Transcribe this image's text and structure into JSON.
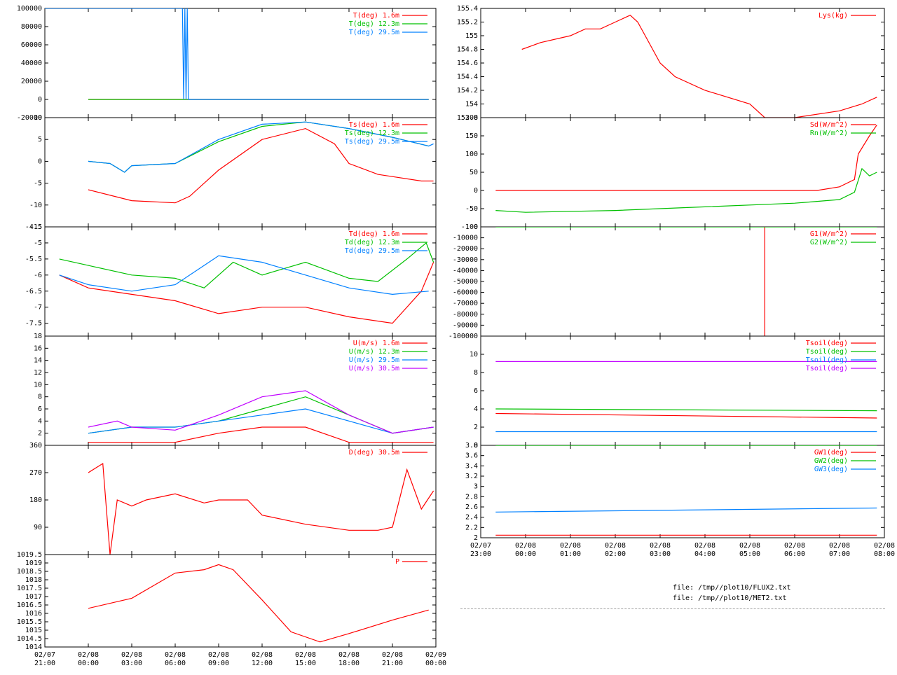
{
  "colors": {
    "c1": "#ff0000",
    "c2": "#00c000",
    "c3": "#0080ff",
    "c4": "#c000ff",
    "frame": "#000000",
    "background": "#ffffff"
  },
  "time_axes": {
    "left": {
      "ticks": [
        [
          "02/07",
          "21:00"
        ],
        [
          "02/08",
          "00:00"
        ],
        [
          "02/08",
          "03:00"
        ],
        [
          "02/08",
          "06:00"
        ],
        [
          "02/08",
          "09:00"
        ],
        [
          "02/08",
          "12:00"
        ],
        [
          "02/08",
          "15:00"
        ],
        [
          "02/08",
          "18:00"
        ],
        [
          "02/08",
          "21:00"
        ],
        [
          "02/09",
          "00:00"
        ]
      ]
    },
    "right": {
      "ticks": [
        [
          "02/07",
          "23:00"
        ],
        [
          "02/08",
          "00:00"
        ],
        [
          "02/08",
          "01:00"
        ],
        [
          "02/08",
          "02:00"
        ],
        [
          "02/08",
          "03:00"
        ],
        [
          "02/08",
          "04:00"
        ],
        [
          "02/08",
          "05:00"
        ],
        [
          "02/08",
          "06:00"
        ],
        [
          "02/08",
          "07:00"
        ],
        [
          "02/08",
          "08:00"
        ]
      ]
    }
  },
  "footer": {
    "files": [
      "file: /tmp//plot10/FLUX2.txt",
      "file: /tmp//plot10/MET2.txt"
    ]
  },
  "chart_data": [
    {
      "id": "temperature",
      "type": "line",
      "x_range": [
        "2/7 21:00",
        "2/9 00:00"
      ],
      "ylim": [
        -20000,
        100000
      ],
      "yticks": [
        "100000",
        "80000",
        "60000",
        "40000",
        "20000",
        "0",
        "-20000"
      ],
      "series": [
        {
          "name": "T(deg)  1.6m",
          "color": "#ff0000",
          "x": [
            "2/8 00:00",
            "2/8 23:30"
          ],
          "y": [
            0,
            0
          ]
        },
        {
          "name": "T(deg) 12.3m",
          "color": "#00c000",
          "x": [
            "2/8 00:00",
            "2/8 23:30"
          ],
          "y": [
            0,
            0
          ]
        },
        {
          "name": "T(deg) 29.5m",
          "color": "#0080ff",
          "x": [
            "2/7 21:00",
            "2/8 06:30",
            "2/8 06:35",
            "2/8 06:40",
            "2/8 06:45",
            "2/8 06:50",
            "2/8 06:55",
            "2/8 07:00",
            "2/8 23:30"
          ],
          "y": [
            100000,
            100000,
            0,
            100000,
            0,
            100000,
            0,
            0,
            0
          ]
        }
      ]
    },
    {
      "id": "surface-temperature",
      "type": "line",
      "x_range": [
        "2/7 21:00",
        "2/9 00:00"
      ],
      "ylim": [
        -15,
        10
      ],
      "yticks": [
        "10",
        "5",
        "0",
        "-5",
        "-10",
        "-15"
      ],
      "series": [
        {
          "name": "Ts(deg)  1.6m",
          "color": "#ff0000",
          "x": [
            "2/8 00:00",
            "2/8 03:00",
            "2/8 06:00",
            "2/8 07:00",
            "2/8 09:00",
            "2/8 12:00",
            "2/8 15:00",
            "2/8 17:00",
            "2/8 18:00",
            "2/8 20:00",
            "2/8 21:00",
            "2/8 23:00",
            "2/8 23:50"
          ],
          "y": [
            -6.5,
            -9,
            -9.5,
            -8,
            -2,
            5,
            7.5,
            4,
            -0.5,
            -3,
            -3.5,
            -4.5,
            -4.5
          ]
        },
        {
          "name": "Ts(deg) 12.3m",
          "color": "#00c000",
          "x": [
            "2/8 00:00",
            "2/8 01:30",
            "2/8 02:30",
            "2/8 03:00",
            "2/8 06:00",
            "2/8 09:00",
            "2/8 12:00",
            "2/8 15:00",
            "2/8 18:00",
            "2/8 21:00",
            "2/8 23:30"
          ],
          "y": [
            0,
            -0.5,
            -2.5,
            -1,
            -0.5,
            4.5,
            8,
            9,
            7.5,
            5.5,
            3.5
          ]
        },
        {
          "name": "Ts(deg) 29.5m",
          "color": "#0080ff",
          "x": [
            "2/8 00:00",
            "2/8 01:30",
            "2/8 02:30",
            "2/8 03:00",
            "2/8 06:00",
            "2/8 09:00",
            "2/8 12:00",
            "2/8 15:00",
            "2/8 18:00",
            "2/8 21:00",
            "2/8 23:30",
            "2/8 23:50"
          ],
          "y": [
            0,
            -0.5,
            -2.5,
            -1,
            -0.5,
            5,
            8.5,
            9,
            7.5,
            5.5,
            3.5,
            4
          ]
        }
      ]
    },
    {
      "id": "dewpoint",
      "type": "line",
      "x_range": [
        "2/7 21:00",
        "2/9 00:00"
      ],
      "ylim": [
        -7.9,
        -4.5
      ],
      "yticks": [
        "-4.5",
        "-5",
        "-5.5",
        "-6",
        "-6.5",
        "-7",
        "-7.5"
      ],
      "series": [
        {
          "name": "Td(deg)  1.6m",
          "color": "#ff0000",
          "x": [
            "2/7 22:00",
            "2/8 00:00",
            "2/8 03:00",
            "2/8 06:00",
            "2/8 09:00",
            "2/8 12:00",
            "2/8 15:00",
            "2/8 18:00",
            "2/8 21:00",
            "2/8 23:00",
            "2/8 23:50"
          ],
          "y": [
            -6,
            -6.4,
            -6.6,
            -6.8,
            -7.2,
            -7,
            -7,
            -7.3,
            -7.5,
            -6.5,
            -5.6
          ]
        },
        {
          "name": "Td(deg) 12.3m",
          "color": "#00c000",
          "x": [
            "2/7 22:00",
            "2/8 00:00",
            "2/8 03:00",
            "2/8 06:00",
            "2/8 08:00",
            "2/8 10:00",
            "2/8 12:00",
            "2/8 15:00",
            "2/8 18:00",
            "2/8 20:00",
            "2/8 22:00",
            "2/8 23:20",
            "2/8 23:50"
          ],
          "y": [
            -5.5,
            -5.7,
            -6,
            -6.1,
            -6.4,
            -5.6,
            -6,
            -5.6,
            -6.1,
            -6.2,
            -5.5,
            -5,
            -5.6
          ]
        },
        {
          "name": "Td(deg) 29.5m",
          "color": "#0080ff",
          "x": [
            "2/7 22:00",
            "2/8 00:00",
            "2/8 03:00",
            "2/8 06:00",
            "2/8 09:00",
            "2/8 12:00",
            "2/8 15:00",
            "2/8 18:00",
            "2/8 21:00",
            "2/8 23:30"
          ],
          "y": [
            -6,
            -6.3,
            -6.5,
            -6.3,
            -5.4,
            -5.6,
            -6,
            -6.4,
            -6.6,
            -6.5
          ]
        }
      ]
    },
    {
      "id": "wind-speed",
      "type": "line",
      "x_range": [
        "2/7 21:00",
        "2/9 00:00"
      ],
      "ylim": [
        0,
        18
      ],
      "yticks": [
        "18",
        "16",
        "14",
        "12",
        "10",
        "8",
        "6",
        "4",
        "2"
      ],
      "series": [
        {
          "name": "U(m/s)  1.6m",
          "color": "#ff0000",
          "x": [
            "2/8 00:00",
            "2/8 03:00",
            "2/8 06:00",
            "2/8 09:00",
            "2/8 12:00",
            "2/8 15:00",
            "2/8 18:00",
            "2/8 21:00",
            "2/8 23:50"
          ],
          "y": [
            0.5,
            0.5,
            0.5,
            2,
            3,
            3,
            0.5,
            0.5,
            0.5
          ]
        },
        {
          "name": "U(m/s) 12.3m",
          "color": "#00c000",
          "x": [
            "2/8 00:00",
            "2/8 03:00",
            "2/8 06:00",
            "2/8 09:00",
            "2/8 12:00",
            "2/8 15:00",
            "2/8 18:00",
            "2/8 21:00",
            "2/8 23:50"
          ],
          "y": [
            2,
            3,
            3,
            4,
            6,
            8,
            5,
            2,
            3
          ]
        },
        {
          "name": "U(m/s) 29.5m",
          "color": "#0080ff",
          "x": [
            "2/8 00:00",
            "2/8 03:00",
            "2/8 06:00",
            "2/8 09:00",
            "2/8 12:00",
            "2/8 15:00",
            "2/8 18:00",
            "2/8 21:00",
            "2/8 23:50"
          ],
          "y": [
            2,
            3,
            3,
            4,
            5,
            6,
            4,
            2,
            3
          ]
        },
        {
          "name": "U(m/s) 30.5m",
          "color": "#c000ff",
          "x": [
            "2/8 00:00",
            "2/8 02:00",
            "2/8 03:00",
            "2/8 06:00",
            "2/8 09:00",
            "2/8 12:00",
            "2/8 15:00",
            "2/8 18:00",
            "2/8 21:00",
            "2/8 23:50"
          ],
          "y": [
            3,
            4,
            3,
            2.5,
            5,
            8,
            9,
            5,
            2,
            3
          ]
        }
      ]
    },
    {
      "id": "wind-direction",
      "type": "line",
      "x_range": [
        "2/7 21:00",
        "2/9 00:00"
      ],
      "ylim": [
        0,
        360
      ],
      "yticks": [
        "360",
        "270",
        "180",
        "90"
      ],
      "series": [
        {
          "name": "D(deg) 30.5m",
          "color": "#ff0000",
          "x": [
            "2/8 00:00",
            "2/8 01:00",
            "2/8 01:30",
            "2/8 02:00",
            "2/8 03:00",
            "2/8 04:00",
            "2/8 06:00",
            "2/8 08:00",
            "2/8 09:00",
            "2/8 11:00",
            "2/8 12:00",
            "2/8 15:00",
            "2/8 18:00",
            "2/8 20:00",
            "2/8 21:00",
            "2/8 22:00",
            "2/8 23:00",
            "2/8 23:50"
          ],
          "y": [
            270,
            300,
            0,
            180,
            160,
            180,
            200,
            170,
            180,
            180,
            130,
            100,
            80,
            80,
            90,
            280,
            150,
            210
          ]
        }
      ]
    },
    {
      "id": "pressure",
      "type": "line",
      "x_range": [
        "2/7 21:00",
        "2/9 00:00"
      ],
      "ylim": [
        1014,
        1019.5
      ],
      "yticks": [
        "1019.5",
        "1019",
        "1018.5",
        "1018",
        "1017.5",
        "1017",
        "1016.5",
        "1016",
        "1015.5",
        "1015",
        "1014.5",
        "1014"
      ],
      "series": [
        {
          "name": "P",
          "color": "#ff0000",
          "x": [
            "2/8 00:00",
            "2/8 03:00",
            "2/8 06:00",
            "2/8 08:00",
            "2/8 09:00",
            "2/8 10:00",
            "2/8 12:00",
            "2/8 14:00",
            "2/8 16:00",
            "2/8 18:00",
            "2/8 21:00",
            "2/8 23:30"
          ],
          "y": [
            1016.3,
            1016.9,
            1018.4,
            1018.6,
            1018.9,
            1018.6,
            1016.8,
            1014.9,
            1014.3,
            1014.8,
            1015.6,
            1016.2
          ]
        }
      ]
    },
    {
      "id": "lysimeter",
      "type": "line",
      "x_range": [
        "2/7 23:00",
        "2/8 08:00"
      ],
      "ylim": [
        153.8,
        155.4
      ],
      "yticks": [
        "155.4",
        "155.2",
        "155",
        "154.8",
        "154.6",
        "154.4",
        "154.2",
        "154",
        "153.8"
      ],
      "series": [
        {
          "name": "Lys(kg)",
          "color": "#ff0000",
          "x": [
            "2/7 23:55",
            "2/8 00:20",
            "2/8 01:00",
            "2/8 01:20",
            "2/8 01:40",
            "2/8 02:00",
            "2/8 02:20",
            "2/8 02:30",
            "2/8 02:40",
            "2/8 03:00",
            "2/8 03:20",
            "2/8 04:00",
            "2/8 05:00",
            "2/8 05:20",
            "2/8 06:00",
            "2/8 07:00",
            "2/8 07:30",
            "2/8 07:50"
          ],
          "y": [
            154.8,
            154.9,
            155,
            155.1,
            155.1,
            155.2,
            155.3,
            155.2,
            155,
            154.6,
            154.4,
            154.2,
            154,
            153.8,
            153.8,
            153.9,
            154,
            154.1
          ]
        }
      ]
    },
    {
      "id": "radiation",
      "type": "line",
      "x_range": [
        "2/7 23:00",
        "2/8 08:00"
      ],
      "ylim": [
        -100,
        200
      ],
      "yticks": [
        "200",
        "150",
        "100",
        "50",
        "0",
        "-50",
        "-100"
      ],
      "series": [
        {
          "name": "Sd(W/m^2)",
          "color": "#ff0000",
          "x": [
            "2/7 23:20",
            "2/8 04:00",
            "2/8 06:30",
            "2/8 07:00",
            "2/8 07:20",
            "2/8 07:25",
            "2/8 07:40",
            "2/8 07:50"
          ],
          "y": [
            0,
            0,
            0,
            10,
            30,
            100,
            150,
            180
          ]
        },
        {
          "name": "Rn(W/m^2)",
          "color": "#00c000",
          "x": [
            "2/7 23:20",
            "2/8 00:00",
            "2/8 02:00",
            "2/8 04:00",
            "2/8 06:00",
            "2/8 07:00",
            "2/8 07:20",
            "2/8 07:30",
            "2/8 07:40",
            "2/8 07:50"
          ],
          "y": [
            -55,
            -60,
            -55,
            -45,
            -35,
            -25,
            -5,
            60,
            40,
            50
          ]
        }
      ]
    },
    {
      "id": "ground-heat-flux",
      "type": "line",
      "x_range": [
        "2/7 23:00",
        "2/8 08:00"
      ],
      "ylim": [
        -100000,
        0
      ],
      "yticks": [
        "0",
        "-10000",
        "-20000",
        "-30000",
        "-40000",
        "-50000",
        "-60000",
        "-70000",
        "-80000",
        "-90000",
        "-100000"
      ],
      "series": [
        {
          "name": "G1(W/m^2)",
          "color": "#ff0000",
          "x": [
            "2/8 05:20",
            "2/8 05:20"
          ],
          "y": [
            0,
            -100000
          ]
        },
        {
          "name": "G2(W/m^2)",
          "color": "#00c000",
          "x": [
            "2/7 23:20",
            "2/8 07:50"
          ],
          "y": [
            0,
            0
          ]
        }
      ]
    },
    {
      "id": "soil-temperature",
      "type": "line",
      "x_range": [
        "2/7 23:00",
        "2/8 08:00"
      ],
      "ylim": [
        0,
        12
      ],
      "yticks": [
        "10",
        "8",
        "6",
        "4",
        "2",
        "0"
      ],
      "series": [
        {
          "name": "Tsoil(deg)",
          "color": "#ff0000",
          "x": [
            "2/7 23:20",
            "2/8 07:50"
          ],
          "y": [
            3.5,
            3
          ]
        },
        {
          "name": "Tsoil(deg)",
          "color": "#00c000",
          "x": [
            "2/7 23:20",
            "2/8 07:50"
          ],
          "y": [
            4,
            3.8
          ]
        },
        {
          "name": "Tsoil(deg)",
          "color": "#0080ff",
          "x": [
            "2/7 23:20",
            "2/8 07:50"
          ],
          "y": [
            1.5,
            1.5
          ]
        },
        {
          "name": "Tsoil(deg)",
          "color": "#c000ff",
          "x": [
            "2/7 23:20",
            "2/8 07:50"
          ],
          "y": [
            9.2,
            9.2
          ]
        }
      ]
    },
    {
      "id": "groundwater",
      "type": "line",
      "x_range": [
        "2/7 23:00",
        "2/8 08:00"
      ],
      "ylim": [
        2,
        3.8
      ],
      "yticks": [
        "3.8",
        "3.6",
        "3.4",
        "3.2",
        "3",
        "2.8",
        "2.6",
        "2.4",
        "2.2",
        "2"
      ],
      "series": [
        {
          "name": "GW1(deg)",
          "color": "#ff0000",
          "x": [
            "2/7 23:20",
            "2/8 07:50"
          ],
          "y": [
            2.05,
            2.05
          ]
        },
        {
          "name": "GW2(deg)",
          "color": "#00c000",
          "x": [
            "2/7 23:20",
            "2/8 07:50"
          ],
          "y": [
            3.8,
            3.8
          ]
        },
        {
          "name": "GW3(deg)",
          "color": "#0080ff",
          "x": [
            "2/7 23:20",
            "2/8 07:50"
          ],
          "y": [
            2.5,
            2.58
          ]
        }
      ]
    }
  ]
}
